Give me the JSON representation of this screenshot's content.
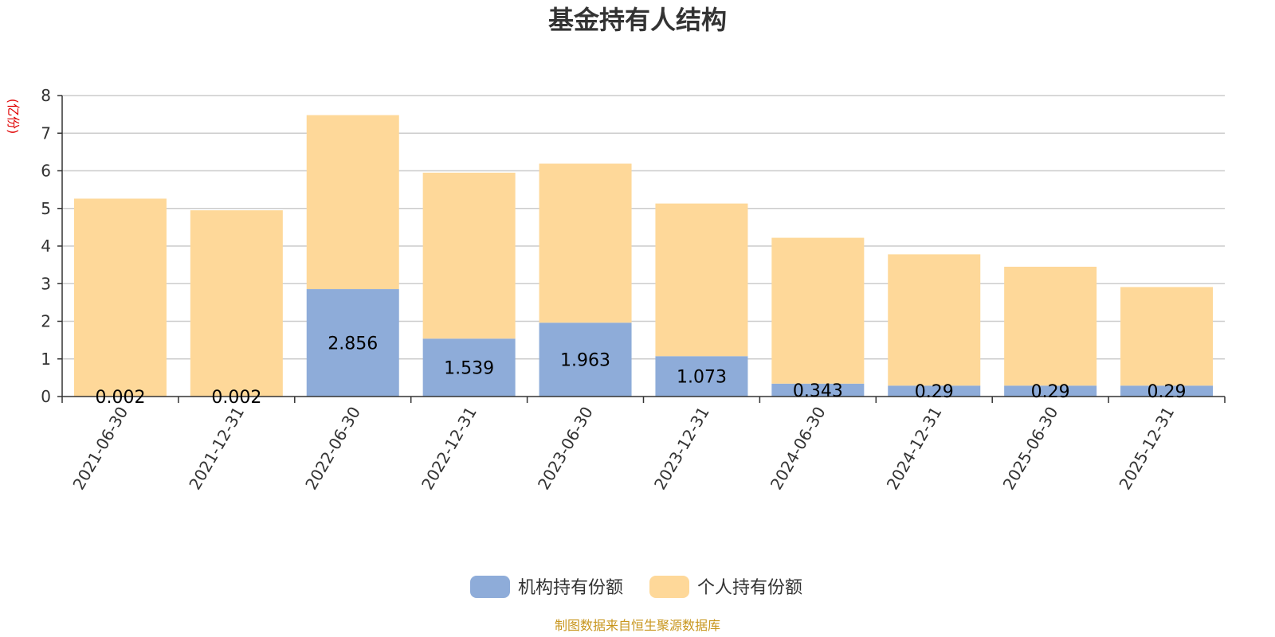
{
  "chart_data": {
    "type": "bar",
    "stacked": true,
    "title": "基金持有人结构",
    "ylabel": "(亿份)",
    "ylim": [
      0,
      8
    ],
    "yticks": [
      0,
      1,
      2,
      3,
      4,
      5,
      6,
      7,
      8
    ],
    "grid": true,
    "legend_position": "bottom",
    "categories": [
      "2021-06-30",
      "2021-12-31",
      "2022-06-30",
      "2022-12-31",
      "2023-06-30",
      "2023-12-31",
      "2024-06-30",
      "2024-12-31",
      "2025-06-30",
      "2025-12-31"
    ],
    "series": [
      {
        "name": "机构持有份额",
        "color": "#8EACD9",
        "values": [
          0.002,
          0.002,
          2.856,
          1.539,
          1.963,
          1.073,
          0.343,
          0.29,
          0.29,
          0.29
        ],
        "labels": [
          "0.002",
          "0.002",
          "2.856",
          "1.539",
          "1.963",
          "1.073",
          "0.343",
          "0.29",
          "0.29",
          "0.29"
        ]
      },
      {
        "name": "个人持有份额",
        "color": "#FED899",
        "values": [
          5.258,
          4.948,
          4.624,
          4.411,
          4.227,
          4.057,
          3.877,
          3.49,
          3.16,
          2.62
        ]
      }
    ],
    "source": "制图数据来自恒生聚源数据库",
    "colors": {
      "title": "#333333",
      "axis": "#333333",
      "grid": "#cccccc",
      "unit": "#e00000",
      "source": "#c8961e"
    }
  }
}
